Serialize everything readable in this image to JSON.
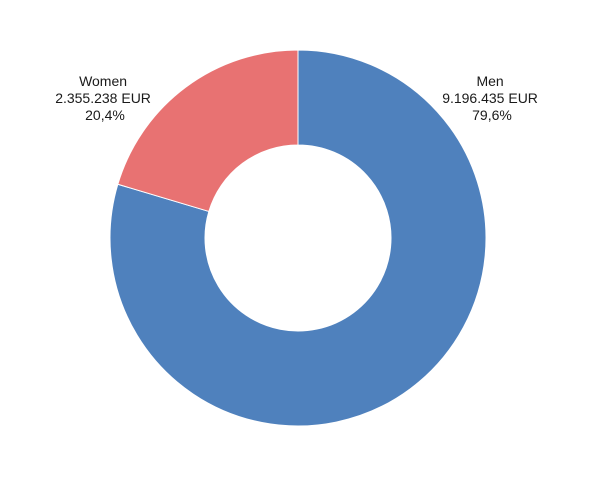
{
  "chart_data": {
    "type": "pie",
    "variant": "donut",
    "title": "",
    "slices": [
      {
        "name": "Men",
        "value": 9196435,
        "value_label": "9.196.435 EUR",
        "percent": 79.6,
        "percent_label": "79,6%",
        "color": "#4f81bd"
      },
      {
        "name": "Women",
        "value": 2355238,
        "value_label": "2.355.238 EUR",
        "percent": 20.4,
        "percent_label": "20,4%",
        "color": "#e87272"
      }
    ],
    "start_angle_deg": 0,
    "direction": "clockwise",
    "legend": "none"
  }
}
